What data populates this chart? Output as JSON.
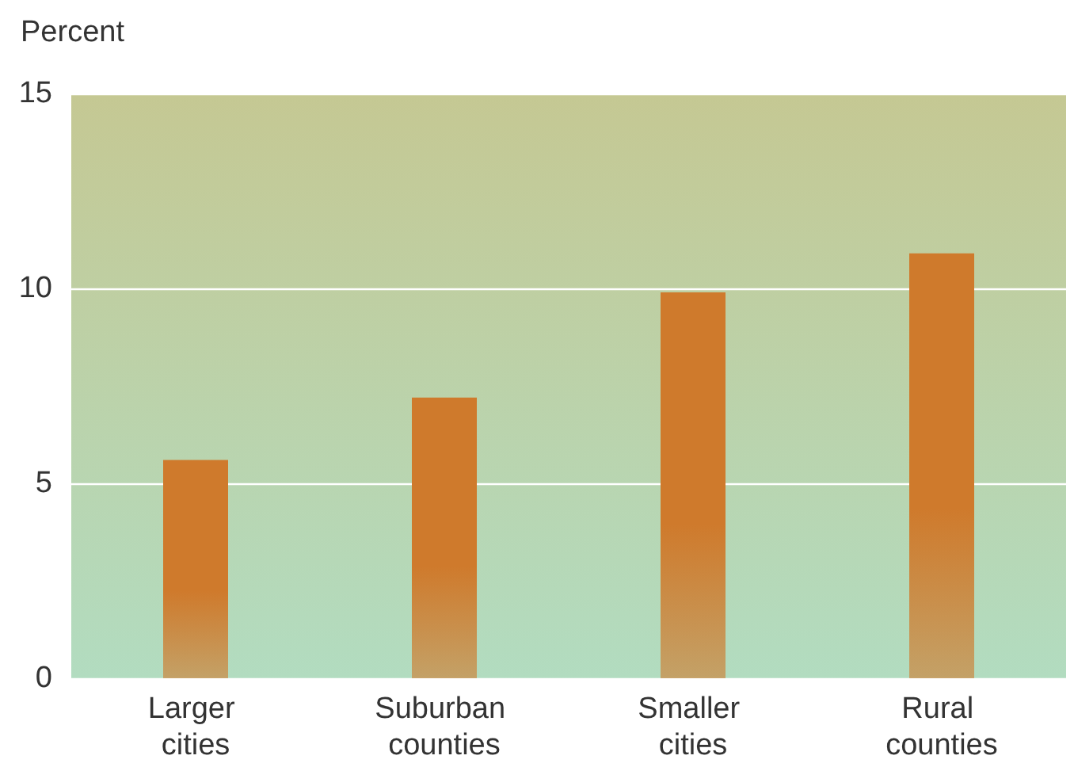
{
  "chart_data": {
    "type": "bar",
    "ylabel": "Percent",
    "categories": [
      "Larger cities",
      "Suburban counties",
      "Smaller cities",
      "Rural counties"
    ],
    "values": [
      5.6,
      7.2,
      9.9,
      10.9
    ],
    "color": "#cf7a2c",
    "ylim": [
      0,
      15
    ],
    "yticks": [
      0,
      5,
      10,
      15
    ],
    "grid": "y"
  }
}
